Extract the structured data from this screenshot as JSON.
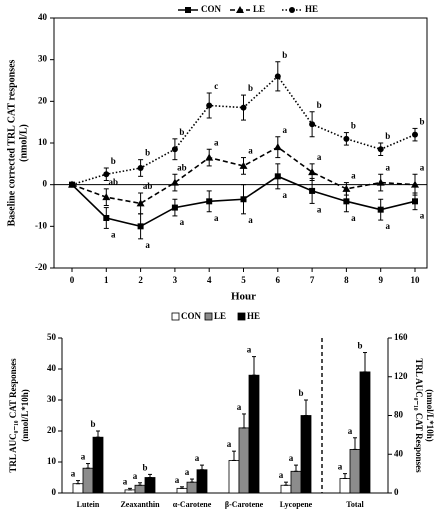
{
  "chart_data": [
    {
      "type": "line",
      "ylabel": [
        "Baseline corrected TRL CAT responses",
        "(nmol/L)"
      ],
      "xlabel": "Hour",
      "x": [
        0,
        1,
        2,
        3,
        4,
        5,
        6,
        7,
        8,
        9,
        10
      ],
      "xlim": [
        0,
        10
      ],
      "xticks": [
        0,
        1,
        2,
        3,
        4,
        5,
        6,
        7,
        8,
        9,
        10
      ],
      "ylim": [
        -20,
        40
      ],
      "yticks": [
        -20,
        -10,
        0,
        10,
        20,
        30,
        40
      ],
      "series": [
        {
          "name": "CON",
          "color": "#000000",
          "dash": "solid",
          "marker": "square",
          "values": [
            0,
            -8,
            -10,
            -5.5,
            -4,
            -3.5,
            2,
            -1.5,
            -4,
            -6,
            -4
          ],
          "errors": [
            0,
            2.5,
            3,
            2,
            2.5,
            3.5,
            3,
            3,
            2.5,
            2.5,
            2
          ],
          "letters": [
            null,
            "a",
            "a",
            "a",
            "a",
            "a",
            "a",
            "a",
            "a",
            "a",
            "a"
          ]
        },
        {
          "name": "LE",
          "color": "#000000",
          "dash": "dashed",
          "marker": "triangle",
          "values": [
            0,
            -3,
            -4.5,
            0.5,
            6.5,
            4.5,
            9,
            3,
            -1,
            0.5,
            0
          ],
          "errors": [
            0,
            2,
            2.5,
            2,
            2,
            2,
            2.5,
            2,
            1.5,
            2,
            2.5
          ],
          "letters": [
            null,
            "ab",
            "ab",
            "ab",
            "a",
            "a",
            "a",
            "a",
            "a",
            "a",
            "a"
          ]
        },
        {
          "name": "HE",
          "color": "#000000",
          "dash": "dotted",
          "marker": "circle",
          "values": [
            0,
            2.5,
            4,
            8.5,
            19,
            18.5,
            26,
            14.5,
            11,
            8.5,
            12
          ],
          "errors": [
            0,
            1.5,
            2,
            2.5,
            3,
            3,
            3.5,
            3,
            1.5,
            1.5,
            1.5
          ],
          "letters": [
            null,
            "b",
            "b",
            "b",
            "c",
            "b",
            "b",
            "b",
            "b",
            "b",
            "b"
          ]
        }
      ]
    },
    {
      "type": "bar",
      "ylabel": [
        "TRL AUC₀₋₁₀ CAT Responses",
        "(nmol/L*10h)"
      ],
      "y2label": [
        "TRL AUC₀₋₁₀ CAT Responses",
        "(nmol/L*10h)"
      ],
      "categories": [
        "Lutein",
        "Zeaxanthin",
        "α-Carotene",
        "β-Carotene",
        "Lycopene"
      ],
      "ylim": [
        0,
        50
      ],
      "yticks": [
        0,
        10,
        20,
        30,
        40,
        50
      ],
      "y2lim": [
        0,
        160
      ],
      "y2ticks": [
        0,
        40,
        80,
        120,
        160
      ],
      "series": [
        {
          "name": "CON",
          "color": "#ffffff",
          "values": [
            3,
            1,
            1.5,
            10.5,
            2.5
          ],
          "errors": [
            1,
            0.5,
            0.5,
            3,
            1
          ],
          "letters": [
            "a",
            "a",
            "a",
            "a",
            "a"
          ]
        },
        {
          "name": "LE",
          "color": "#8c8c8c",
          "values": [
            8,
            2.5,
            3.5,
            21,
            7
          ],
          "errors": [
            1.5,
            0.8,
            1,
            4.5,
            2
          ],
          "letters": [
            "a",
            "a",
            "a",
            "a",
            "a"
          ]
        },
        {
          "name": "HE",
          "color": "#000000",
          "values": [
            18,
            5,
            7.5,
            38,
            25
          ],
          "errors": [
            2,
            1,
            1.5,
            6,
            5
          ],
          "letters": [
            "b",
            "b",
            "a",
            "a",
            "b"
          ]
        }
      ],
      "total": {
        "category": "Total",
        "axis": "y2",
        "values": [
          15,
          45,
          125
        ],
        "errors": [
          5,
          12,
          20
        ],
        "letters": [
          "a",
          "a",
          "b"
        ]
      }
    }
  ]
}
